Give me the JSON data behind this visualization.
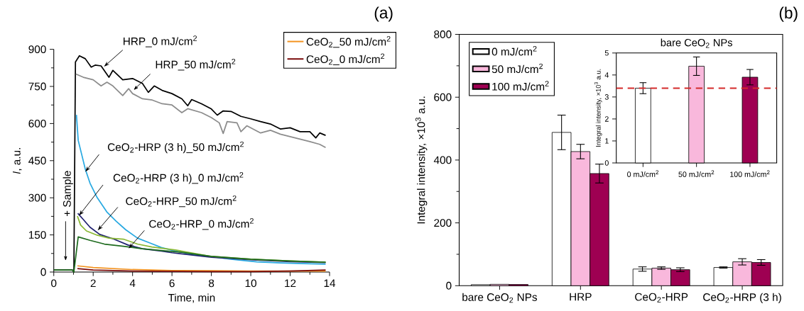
{
  "chart_data": [
    {
      "type": "line",
      "xlabel": "Time, min",
      "ylabel": "*I*, a.u.",
      "xlim": [
        0,
        14
      ],
      "xticks": [
        0,
        2,
        4,
        6,
        8,
        10,
        12,
        14
      ],
      "ylim": [
        0,
        900
      ],
      "yticks": [
        0,
        150,
        300,
        450,
        600,
        750,
        900
      ],
      "legend": "top right",
      "annotations": [
        {
          "text": "HRP_0 mJ/cm$^{2}$",
          "x": 2.55,
          "y": 830
        },
        {
          "text": "HRP_50 mJ/cm$^{2}$",
          "x": 4.05,
          "y": 735
        },
        {
          "text": "CeO$_{2}$-HRP (3 h)_50 mJ/cm$^{2}$",
          "x": 1.6,
          "y": 405
        },
        {
          "text": "CeO$_{2}$-HRP (3 h)_0 mJ/cm$^{2}$",
          "x": 1.28,
          "y": 228
        },
        {
          "text": "CeO$_{2}$-HRP_50 mJ/cm$^{2}$",
          "x": 2.23,
          "y": 168
        },
        {
          "text": "CeO$_{2}$-HRP_0 mJ/cm$^{2}$",
          "x": 3.8,
          "y": 95
        },
        "+ Sample",
        "(a)"
      ],
      "series": [
        {
          "color": "#000000",
          "x": [
            0,
            0.95,
            1.02,
            1.1,
            1.3,
            1.6,
            1.9,
            2.1,
            2.4,
            2.8,
            3.0,
            3.5,
            4.0,
            4.5,
            4.8,
            5.1,
            5.5,
            6.0,
            6.5,
            6.8,
            7.0,
            7.5,
            8.0,
            8.3,
            8.6,
            9.0,
            9.5,
            10.0,
            10.5,
            11.0,
            11.5,
            12.0,
            12.5,
            13.0,
            13.3,
            13.5,
            13.8
          ],
          "values": [
            8,
            8,
            0,
            849,
            874,
            862,
            828,
            836,
            833,
            787,
            815,
            777,
            782,
            762,
            726,
            752,
            734,
            721,
            700,
            672,
            697,
            680,
            659,
            634,
            651,
            649,
            629,
            619,
            608,
            598,
            578,
            583,
            567,
            567,
            542,
            562,
            552
          ]
        },
        {
          "color": "#8c8c8c",
          "x": [
            1.12,
            1.5,
            2.0,
            2.4,
            2.7,
            3.0,
            3.5,
            3.8,
            4.0,
            4.5,
            5.0,
            5.5,
            6.0,
            6.5,
            6.8,
            7.5,
            8.0,
            8.4,
            8.6,
            8.8,
            9.3,
            9.5,
            9.8,
            10.5,
            11.0,
            11.5,
            12.0,
            12.5,
            13.0,
            13.5,
            13.8
          ],
          "values": [
            800,
            787,
            777,
            752,
            767,
            752,
            713,
            741,
            721,
            700,
            695,
            680,
            675,
            644,
            660,
            644,
            624,
            603,
            560,
            608,
            603,
            567,
            591,
            562,
            573,
            557,
            547,
            537,
            527,
            516,
            503
          ]
        },
        {
          "color": "#29a9e1",
          "x": [
            1.15,
            1.24,
            1.42,
            1.6,
            1.84,
            2.2,
            2.69,
            3.17,
            3.65,
            4.25,
            4.86,
            5.46,
            6.18,
            7.14,
            8.1,
            9.07,
            10.3,
            11.5,
            12.7,
            13.8
          ],
          "values": [
            635,
            532,
            474,
            416,
            359,
            301,
            243,
            205,
            171,
            137,
            118,
            99,
            85,
            70,
            61,
            51,
            41,
            37,
            34,
            32
          ]
        },
        {
          "color": "#1f2070",
          "x": [
            1.22,
            1.48,
            1.84,
            2.33,
            3.05,
            3.77,
            4.5,
            5.46,
            6.0,
            8.0,
            10.0,
            12.0,
            13.8
          ],
          "values": [
            237,
            214,
            181,
            152,
            133,
            109,
            94,
            85,
            78,
            60,
            50,
            42,
            38
          ]
        },
        {
          "color": "#8ab833",
          "x": [
            1.2,
            1.36,
            1.66,
            2.2,
            2.8,
            3.53,
            4.25,
            4.98,
            6.18,
            8.0,
            10.0,
            12.0,
            13.8
          ],
          "values": [
            226,
            190,
            166,
            149,
            137,
            133,
            113,
            101,
            89,
            63,
            52,
            45,
            40
          ]
        },
        {
          "color": "#1e6b1e",
          "x": [
            0,
            0.95,
            1.02,
            1.24,
            1.84,
            2.57,
            3.53,
            4.5,
            5.46,
            6.5,
            8.0,
            10.0,
            12.0,
            13.8
          ],
          "values": [
            8,
            8,
            0,
            142,
            128,
            113,
            104,
            94,
            87,
            80,
            63,
            52,
            45,
            40
          ]
        },
        {
          "name": "CeO$_{2}$_50 mJ/cm$^{2}$",
          "color": "#f39320",
          "x": [
            1.2,
            2.0,
            4.0,
            6.0,
            8.0,
            10.0,
            12.0,
            13.8
          ],
          "values": [
            25,
            18,
            10,
            6,
            5,
            4,
            4,
            4
          ]
        },
        {
          "name": "CeO$_{2}$_0 mJ/cm$^{2}$",
          "color": "#7a0a0a",
          "x": [
            1.2,
            2.0,
            4.0,
            6.0,
            8.0,
            10.0,
            12.0,
            13.8
          ],
          "values": [
            14,
            8,
            4,
            3,
            2,
            2,
            4,
            8
          ]
        }
      ]
    },
    {
      "type": "bar",
      "ylabel": "Integral intensity, ×10$^{3}$ a.u.",
      "categories": [
        "bare CeO$_{2}$ NPs",
        "HRP",
        "CeO$_{2}$-HRP",
        "CeO$_{2}$-HRP (3 h)"
      ],
      "ylim": [
        0,
        800
      ],
      "yticks": [
        0,
        200,
        400,
        600,
        800
      ],
      "legend": "top left",
      "annotations": [
        "(b)"
      ],
      "series": [
        {
          "name": "0 mJ/cm$^{2}$",
          "color": "#ffffff",
          "values": [
            3.4,
            488,
            53,
            58
          ],
          "errors": [
            null,
            55,
            7,
            2
          ]
        },
        {
          "name": "50 mJ/cm$^{2}$",
          "color": "#f9b8dc",
          "values": [
            4.4,
            427,
            56,
            76
          ],
          "errors": [
            null,
            23,
            4,
            10
          ]
        },
        {
          "name": "100 mJ/cm$^{2}$",
          "color": "#9e0052",
          "values": [
            3.9,
            357,
            51,
            74
          ],
          "errors": [
            null,
            30,
            6,
            9
          ]
        }
      ]
    },
    {
      "type": "bar",
      "title": "bare CeO$_{2}$ NPs",
      "ylabel": "Integral intensity, ×10$^{3}$ a.u.",
      "categories": [
        "0 mJ/cm$^{2}$",
        "50 mJ/cm$^{2}$",
        "100 mJ/cm$^{2}$"
      ],
      "values": [
        3.4,
        4.4,
        3.9
      ],
      "colors": [
        "#ffffff",
        "#f9b8dc",
        "#9e0052"
      ],
      "errors": [
        0.25,
        0.42,
        0.35
      ],
      "ylim": [
        0,
        5
      ],
      "yticks": [
        0,
        1,
        2,
        3,
        4,
        5
      ],
      "ref_lines": [
        {
          "axis": "y",
          "value": 3.4,
          "color": "#d42a2a",
          "line_style": "dashed"
        }
      ]
    }
  ]
}
